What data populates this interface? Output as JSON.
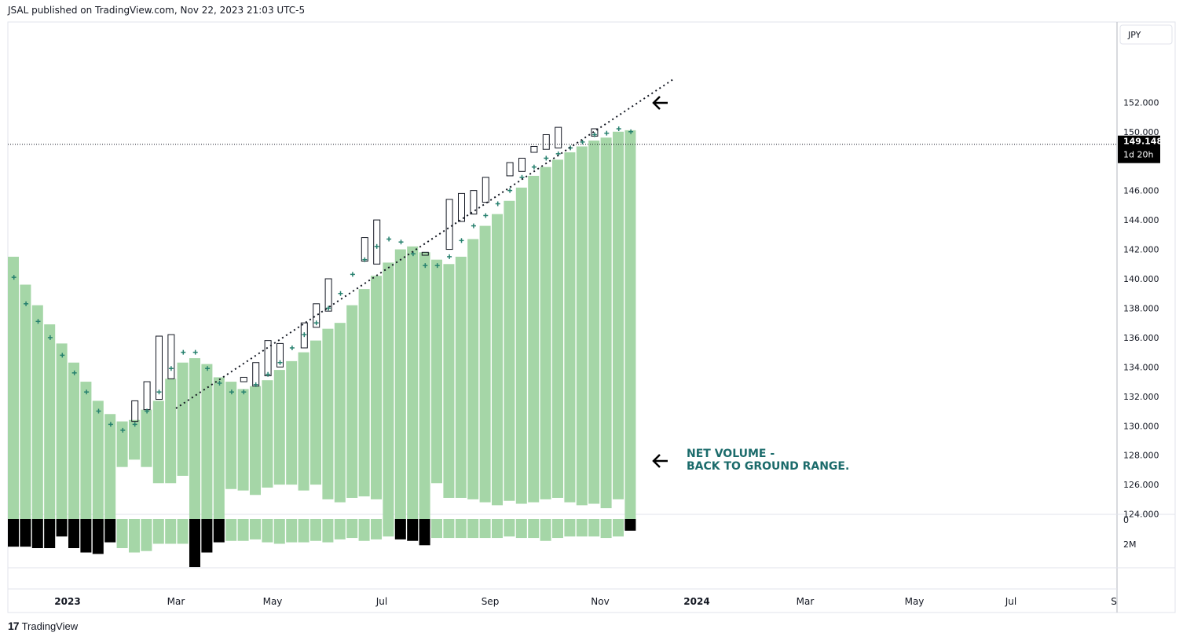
{
  "header": {
    "publisher_text": "JSAL published on TradingView.com, Nov 22, 2023 21:03 UTC-5"
  },
  "footer": {
    "logo_text": "TradingView"
  },
  "colors": {
    "bar_green": "#a5d6a7",
    "volume_green": "#a5d6a7",
    "volume_black": "#000000",
    "plus_marker": "#26806e",
    "annotation": "#1b6b6b"
  },
  "chart_data": {
    "type": "bar",
    "currency_label": "JPY",
    "price_axis": {
      "range": [
        122.0,
        154.0
      ],
      "ticks": [
        "152.000",
        "150.000",
        "146.000",
        "144.000",
        "142.000",
        "140.000",
        "138.000",
        "136.000",
        "134.000",
        "132.000",
        "130.000",
        "128.000",
        "126.000",
        "124.000"
      ]
    },
    "last_price": {
      "value": "149.148",
      "countdown": "1d 20h"
    },
    "time_axis": {
      "ticks": [
        {
          "label": "2023",
          "bold": true
        },
        {
          "label": "Mar",
          "bold": false
        },
        {
          "label": "May",
          "bold": false
        },
        {
          "label": "Jul",
          "bold": false
        },
        {
          "label": "Sep",
          "bold": false
        },
        {
          "label": "Nov",
          "bold": false
        },
        {
          "label": "2024",
          "bold": true
        },
        {
          "label": "Mar",
          "bold": false
        },
        {
          "label": "May",
          "bold": false
        },
        {
          "label": "Jul",
          "bold": false
        },
        {
          "label": "S",
          "bold": false
        }
      ]
    },
    "volume_axis": {
      "ticks": [
        "0",
        "2M"
      ]
    },
    "net_volume_bars": [
      [
        141.5,
        123.0
      ],
      [
        139.6,
        123.0
      ],
      [
        138.2,
        123.0
      ],
      [
        136.9,
        123.0
      ],
      [
        135.6,
        123.0
      ],
      [
        134.3,
        123.0
      ],
      [
        133.0,
        123.0
      ],
      [
        131.7,
        123.0
      ],
      [
        130.8,
        123.0
      ],
      [
        130.3,
        127.2
      ],
      [
        130.4,
        127.7
      ],
      [
        131.1,
        127.2
      ],
      [
        131.7,
        126.1
      ],
      [
        133.2,
        126.1
      ],
      [
        134.3,
        126.6
      ],
      [
        134.6,
        123.0
      ],
      [
        134.2,
        123.0
      ],
      [
        133.3,
        123.0
      ],
      [
        133.0,
        125.7
      ],
      [
        132.5,
        125.6
      ],
      [
        132.7,
        125.3
      ],
      [
        133.1,
        125.8
      ],
      [
        133.8,
        126.0
      ],
      [
        134.4,
        126.0
      ],
      [
        135.0,
        125.6
      ],
      [
        135.8,
        126.0
      ],
      [
        136.6,
        125.0
      ],
      [
        137.0,
        124.8
      ],
      [
        138.2,
        125.1
      ],
      [
        139.3,
        125.2
      ],
      [
        140.2,
        125.0
      ],
      [
        141.1,
        123.0
      ],
      [
        142.0,
        123.0
      ],
      [
        142.2,
        123.0
      ],
      [
        141.8,
        123.0
      ],
      [
        141.3,
        126.1
      ],
      [
        141.0,
        125.1
      ],
      [
        141.5,
        125.1
      ],
      [
        142.7,
        125.0
      ],
      [
        143.6,
        124.8
      ],
      [
        144.4,
        124.6
      ],
      [
        145.3,
        124.9
      ],
      [
        146.2,
        124.7
      ],
      [
        147.0,
        124.8
      ],
      [
        147.6,
        125.0
      ],
      [
        148.1,
        125.1
      ],
      [
        148.6,
        124.8
      ],
      [
        149.0,
        124.6
      ],
      [
        149.4,
        124.7
      ],
      [
        149.6,
        124.4
      ],
      [
        150.0,
        125.0
      ],
      [
        150.1,
        123.0
      ]
    ],
    "candle_boxes": [
      [
        130.3,
        131.7
      ],
      [
        131.1,
        133.0
      ],
      [
        131.8,
        136.1
      ],
      [
        133.2,
        136.2
      ],
      [
        133.3,
        133.0
      ],
      [
        132.7,
        134.3
      ],
      [
        133.4,
        135.8
      ],
      [
        134.0,
        135.6
      ],
      [
        135.3,
        137.0
      ],
      [
        136.7,
        138.3
      ],
      [
        137.8,
        140.0
      ],
      [
        141.2,
        142.8
      ],
      [
        141.0,
        144.0
      ],
      [
        141.6,
        141.8
      ],
      [
        142.0,
        145.4
      ],
      [
        143.9,
        145.8
      ],
      [
        144.4,
        146.0
      ],
      [
        145.2,
        146.9
      ],
      [
        147.0,
        147.9
      ],
      [
        147.3,
        148.2
      ],
      [
        148.6,
        149.0
      ],
      [
        148.8,
        149.8
      ],
      [
        148.9,
        150.3
      ],
      [
        149.7,
        150.2
      ]
    ],
    "candle_box_positions": [
      10,
      11,
      12,
      13,
      19,
      20,
      21,
      22,
      24,
      25,
      26,
      29,
      30,
      34,
      36,
      37,
      38,
      39,
      41,
      42,
      43,
      44,
      45,
      48
    ],
    "plus_markers": [
      140.1,
      138.3,
      137.1,
      136.0,
      134.8,
      133.6,
      132.3,
      131.0,
      130.1,
      129.7,
      130.1,
      131.0,
      132.3,
      133.9,
      135.0,
      135.0,
      133.9,
      132.9,
      132.3,
      132.3,
      132.8,
      133.5,
      134.3,
      135.3,
      136.2,
      137.0,
      138.0,
      139.0,
      140.3,
      141.3,
      142.2,
      142.7,
      142.5,
      141.7,
      140.9,
      140.9,
      141.5,
      142.6,
      143.6,
      144.3,
      145.1,
      146.0,
      146.9,
      147.6,
      148.2,
      148.5,
      148.9,
      149.3,
      149.8,
      149.9,
      150.2,
      150.0
    ],
    "volume_bars": [
      [
        -1.9,
        "black"
      ],
      [
        -1.9,
        "black"
      ],
      [
        -2.0,
        "black"
      ],
      [
        -2.0,
        "black"
      ],
      [
        -1.2,
        "black"
      ],
      [
        -2.0,
        "black"
      ],
      [
        -2.3,
        "black"
      ],
      [
        -2.4,
        "black"
      ],
      [
        -1.6,
        "black"
      ],
      [
        -2.0,
        "green"
      ],
      [
        -2.3,
        "green"
      ],
      [
        -2.2,
        "green"
      ],
      [
        -1.7,
        "green"
      ],
      [
        -1.7,
        "green"
      ],
      [
        -1.7,
        "green"
      ],
      [
        -3.3,
        "black"
      ],
      [
        -2.3,
        "black"
      ],
      [
        -1.6,
        "black"
      ],
      [
        -1.5,
        "green"
      ],
      [
        -1.5,
        "green"
      ],
      [
        -1.4,
        "green"
      ],
      [
        -1.6,
        "green"
      ],
      [
        -1.7,
        "green"
      ],
      [
        -1.6,
        "green"
      ],
      [
        -1.6,
        "green"
      ],
      [
        -1.5,
        "green"
      ],
      [
        -1.6,
        "green"
      ],
      [
        -1.4,
        "green"
      ],
      [
        -1.3,
        "green"
      ],
      [
        -1.5,
        "green"
      ],
      [
        -1.4,
        "green"
      ],
      [
        -1.2,
        "green"
      ],
      [
        -1.4,
        "black"
      ],
      [
        -1.5,
        "black"
      ],
      [
        -1.8,
        "black"
      ],
      [
        -1.3,
        "green"
      ],
      [
        -1.3,
        "green"
      ],
      [
        -1.3,
        "green"
      ],
      [
        -1.3,
        "green"
      ],
      [
        -1.3,
        "green"
      ],
      [
        -1.3,
        "green"
      ],
      [
        -1.2,
        "green"
      ],
      [
        -1.3,
        "green"
      ],
      [
        -1.3,
        "green"
      ],
      [
        -1.5,
        "green"
      ],
      [
        -1.3,
        "green"
      ],
      [
        -1.2,
        "green"
      ],
      [
        -1.2,
        "green"
      ],
      [
        -1.2,
        "green"
      ],
      [
        -1.3,
        "green"
      ],
      [
        -1.2,
        "green"
      ],
      [
        -0.8,
        "black"
      ]
    ],
    "trendline": {
      "from": [
        134.0,
        129.1
      ],
      "to": [
        155.0,
        151.5
      ],
      "style": "dotted"
    },
    "annotations": [
      {
        "text_line1": "NET VOLUME -",
        "text_line2": "BACK TO GROUND RANGE."
      }
    ]
  }
}
